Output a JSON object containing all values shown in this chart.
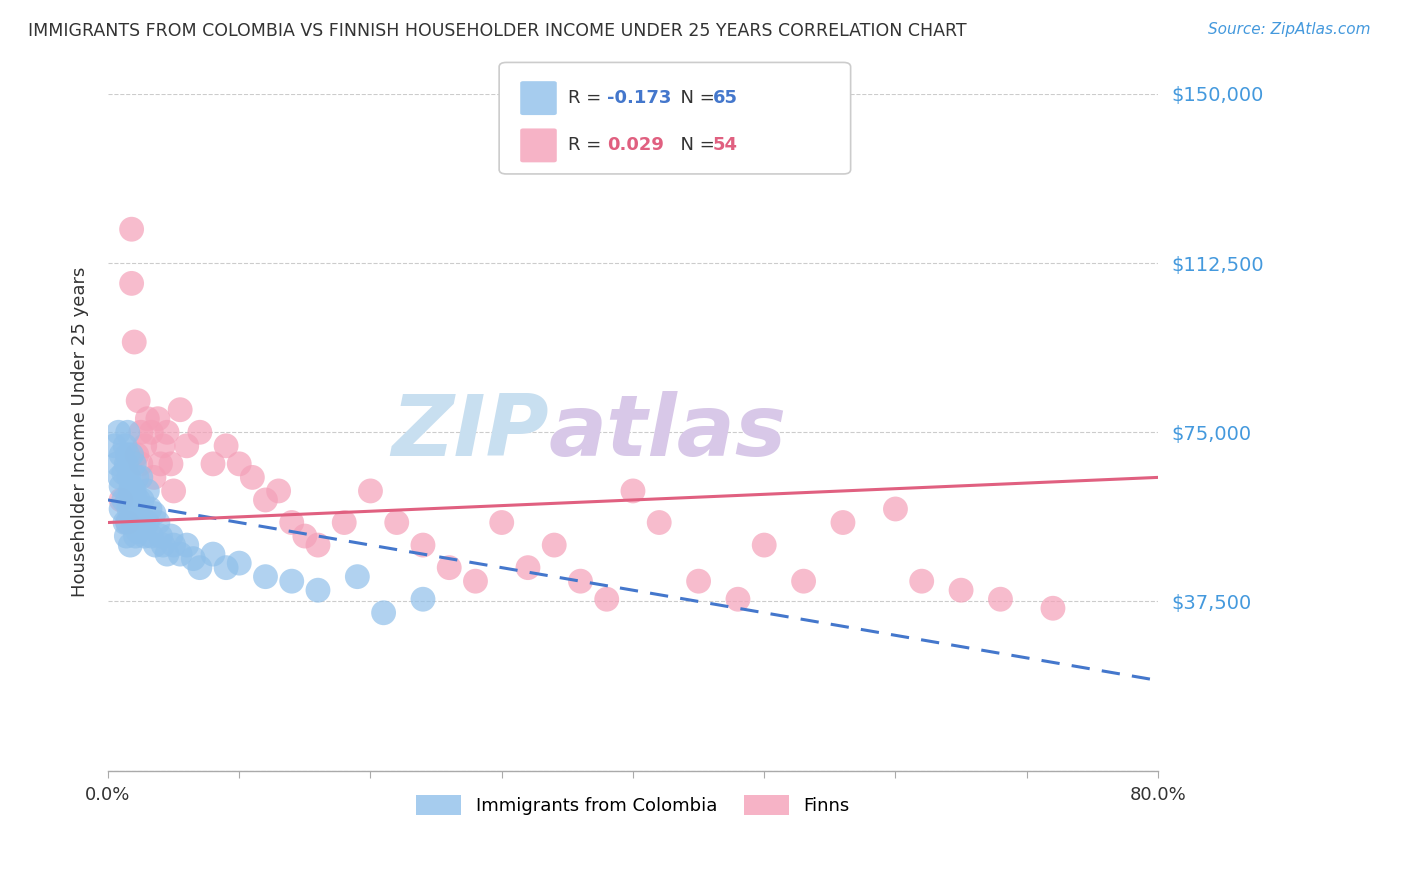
{
  "title": "IMMIGRANTS FROM COLOMBIA VS FINNISH HOUSEHOLDER INCOME UNDER 25 YEARS CORRELATION CHART",
  "source_text": "Source: ZipAtlas.com",
  "ylabel": "Householder Income Under 25 years",
  "xlim": [
    0.0,
    0.8
  ],
  "ylim": [
    0,
    150000
  ],
  "yticks": [
    0,
    37500,
    75000,
    112500,
    150000
  ],
  "ytick_labels": [
    "",
    "$37,500",
    "$75,000",
    "$112,500",
    "$150,000"
  ],
  "xticks": [
    0.0,
    0.1,
    0.2,
    0.3,
    0.4,
    0.5,
    0.6,
    0.7,
    0.8
  ],
  "xtick_labels": [
    "0.0%",
    "",
    "",
    "",
    "",
    "",
    "",
    "",
    "80.0%"
  ],
  "colombia_R": -0.173,
  "colombia_N": 65,
  "finns_R": 0.029,
  "finns_N": 54,
  "colombia_color": "#90c0ea",
  "finns_color": "#f4a0b8",
  "colombia_line_color": "#4477cc",
  "finns_line_color": "#e06080",
  "background_color": "#ffffff",
  "grid_color": "#cccccc",
  "watermark_zip_color": "#c8dff0",
  "watermark_atlas_color": "#d8c8e8",
  "title_color": "#333333",
  "axis_label_color": "#333333",
  "ytick_color": "#4499dd",
  "colombia_scatter_x": [
    0.005,
    0.007,
    0.008,
    0.009,
    0.01,
    0.01,
    0.01,
    0.012,
    0.012,
    0.013,
    0.013,
    0.014,
    0.014,
    0.015,
    0.015,
    0.015,
    0.015,
    0.016,
    0.016,
    0.017,
    0.017,
    0.018,
    0.018,
    0.018,
    0.019,
    0.02,
    0.02,
    0.02,
    0.021,
    0.021,
    0.022,
    0.022,
    0.023,
    0.023,
    0.024,
    0.025,
    0.025,
    0.026,
    0.027,
    0.028,
    0.03,
    0.03,
    0.032,
    0.033,
    0.035,
    0.036,
    0.038,
    0.04,
    0.042,
    0.045,
    0.048,
    0.05,
    0.055,
    0.06,
    0.065,
    0.07,
    0.08,
    0.09,
    0.1,
    0.12,
    0.14,
    0.16,
    0.19,
    0.21,
    0.24
  ],
  "colombia_scatter_y": [
    72000,
    68000,
    75000,
    65000,
    70000,
    63000,
    58000,
    66000,
    60000,
    72000,
    55000,
    68000,
    52000,
    75000,
    70000,
    60000,
    55000,
    65000,
    58000,
    62000,
    50000,
    70000,
    63000,
    57000,
    55000,
    68000,
    62000,
    55000,
    60000,
    52000,
    65000,
    58000,
    60000,
    53000,
    55000,
    65000,
    57000,
    60000,
    55000,
    52000,
    62000,
    55000,
    58000,
    52000,
    57000,
    50000,
    55000,
    52000,
    50000,
    48000,
    52000,
    50000,
    48000,
    50000,
    47000,
    45000,
    48000,
    45000,
    46000,
    43000,
    42000,
    40000,
    43000,
    35000,
    38000
  ],
  "finns_scatter_x": [
    0.01,
    0.015,
    0.018,
    0.018,
    0.02,
    0.022,
    0.023,
    0.025,
    0.025,
    0.028,
    0.03,
    0.033,
    0.035,
    0.038,
    0.04,
    0.042,
    0.045,
    0.048,
    0.05,
    0.055,
    0.06,
    0.07,
    0.08,
    0.09,
    0.1,
    0.11,
    0.12,
    0.13,
    0.14,
    0.15,
    0.16,
    0.18,
    0.2,
    0.22,
    0.24,
    0.26,
    0.28,
    0.3,
    0.32,
    0.34,
    0.36,
    0.38,
    0.4,
    0.42,
    0.45,
    0.48,
    0.5,
    0.53,
    0.56,
    0.6,
    0.62,
    0.65,
    0.68,
    0.72
  ],
  "finns_scatter_y": [
    60000,
    55000,
    120000,
    108000,
    95000,
    70000,
    82000,
    68000,
    75000,
    72000,
    78000,
    75000,
    65000,
    78000,
    68000,
    72000,
    75000,
    68000,
    62000,
    80000,
    72000,
    75000,
    68000,
    72000,
    68000,
    65000,
    60000,
    62000,
    55000,
    52000,
    50000,
    55000,
    62000,
    55000,
    50000,
    45000,
    42000,
    55000,
    45000,
    50000,
    42000,
    38000,
    62000,
    55000,
    42000,
    38000,
    50000,
    42000,
    55000,
    58000,
    42000,
    40000,
    38000,
    36000
  ]
}
